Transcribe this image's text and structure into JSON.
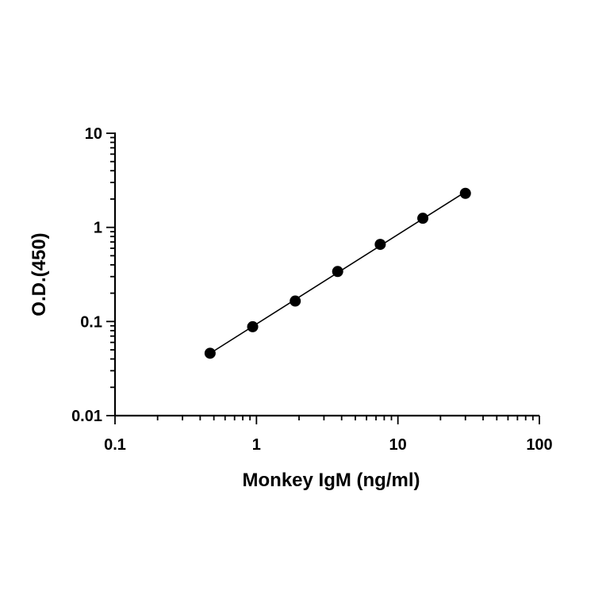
{
  "chart_data": {
    "type": "scatter",
    "title": "",
    "xlabel": "Monkey IgM (ng/ml)",
    "ylabel": "O.D.(450)",
    "xscale": "log",
    "yscale": "log",
    "xlim": [
      0.1,
      100
    ],
    "ylim": [
      0.01,
      10
    ],
    "x_tick_labels": [
      "0.1",
      "1",
      "10",
      "100"
    ],
    "y_tick_labels": [
      "0.01",
      "0.1",
      "1",
      "10"
    ],
    "grid": false,
    "legend": "none",
    "series": [
      {
        "x": [
          0.47,
          0.94,
          1.88,
          3.75,
          7.5,
          15,
          30
        ],
        "y": [
          0.046,
          0.088,
          0.165,
          0.34,
          0.66,
          1.25,
          2.3
        ]
      }
    ],
    "fit_line": true,
    "colors": {
      "points": "#000000",
      "line": "#000000"
    }
  }
}
